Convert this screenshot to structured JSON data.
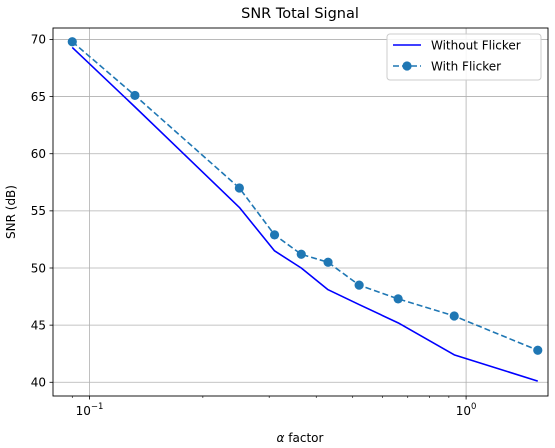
{
  "chart_data": {
    "type": "line",
    "title": "SNR Total Signal",
    "xlabel_symbol": "α",
    "xlabel_text": " factor",
    "ylabel": "SNR (dB)",
    "x_scale": "log",
    "xlim": [
      0.08,
      1.65
    ],
    "ylim": [
      38.8,
      71.0
    ],
    "x_ticks": [
      {
        "value": 0.1,
        "base": "10",
        "exp": "−1"
      },
      {
        "value": 1.0,
        "base": "10",
        "exp": "0"
      }
    ],
    "y_ticks": [
      40,
      45,
      50,
      55,
      60,
      65,
      70
    ],
    "grid": true,
    "legend_position": "top-right",
    "series": [
      {
        "name": "Without Flicker",
        "color": "#0000ff",
        "style": "solid",
        "marker": "none",
        "x": [
          0.09,
          0.132,
          0.25,
          0.31,
          0.365,
          0.43,
          0.52,
          0.66,
          0.93,
          1.55
        ],
        "y": [
          69.3,
          64.1,
          55.3,
          51.5,
          50.0,
          48.1,
          46.8,
          45.2,
          42.4,
          40.1
        ]
      },
      {
        "name": "With Flicker",
        "color": "#1f77b4",
        "style": "dashed",
        "marker": "circle",
        "x": [
          0.09,
          0.132,
          0.25,
          0.31,
          0.365,
          0.43,
          0.52,
          0.66,
          0.93,
          1.55
        ],
        "y": [
          69.8,
          65.1,
          57.0,
          52.9,
          51.2,
          50.5,
          48.5,
          47.3,
          45.8,
          42.8
        ]
      }
    ]
  }
}
